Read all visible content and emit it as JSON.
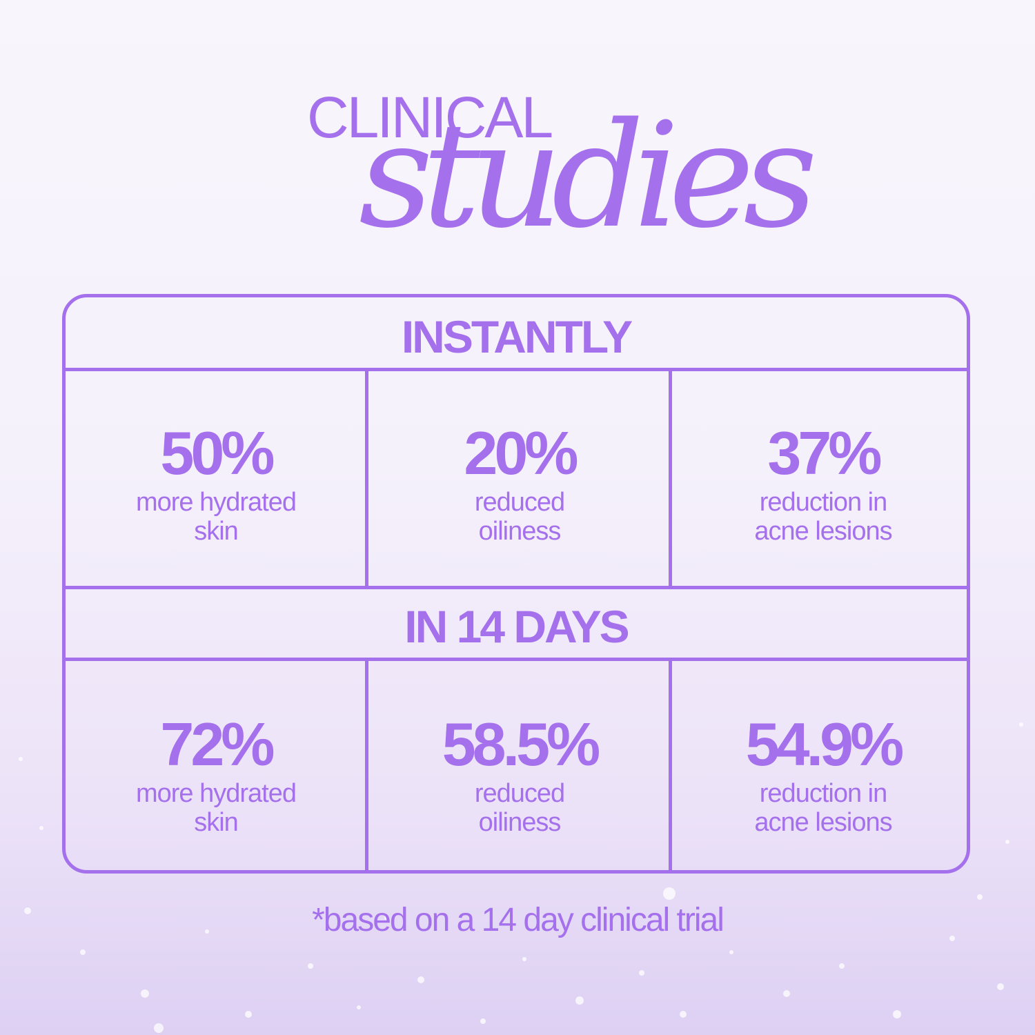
{
  "heading": {
    "line1": "CLINICAL",
    "line2": "studies"
  },
  "sections": [
    {
      "title": "INSTANTLY",
      "stats": [
        {
          "value": "50%",
          "desc1": "more hydrated",
          "desc2": "skin"
        },
        {
          "value": "20%",
          "desc1": "reduced",
          "desc2": "oiliness"
        },
        {
          "value": "37%",
          "desc1": "reduction in",
          "desc2": "acne lesions"
        }
      ]
    },
    {
      "title": "IN 14 DAYS",
      "stats": [
        {
          "value": "72%",
          "desc1": "more hydrated",
          "desc2": "skin"
        },
        {
          "value": "58.5%",
          "desc1": "reduced",
          "desc2": "oiliness"
        },
        {
          "value": "54.9%",
          "desc1": "reduction in",
          "desc2": "acne lesions"
        }
      ]
    }
  ],
  "footnote": "*based on a 14 day clinical trial",
  "colors": {
    "accent": "#a570ec",
    "background": "#f6f2fb"
  }
}
